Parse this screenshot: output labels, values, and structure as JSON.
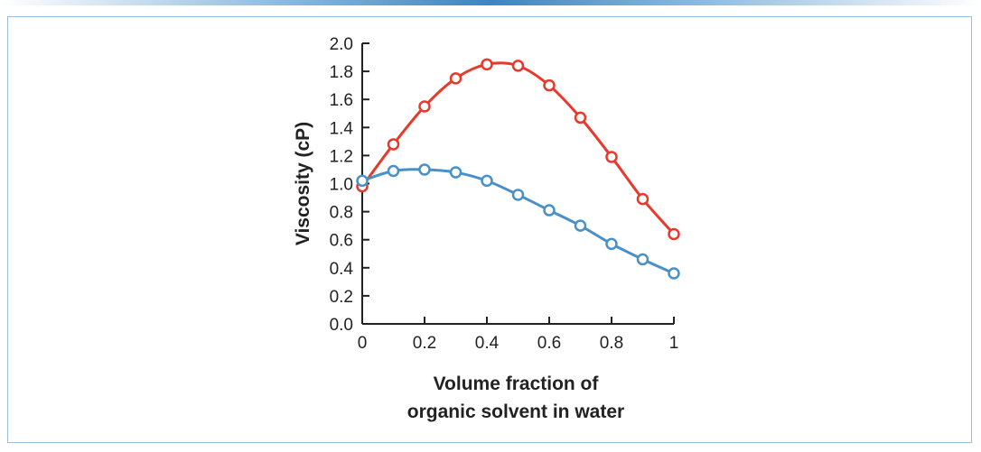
{
  "chart_data": {
    "type": "line",
    "xlabel_lines": [
      "Volume fraction of",
      "organic solvent in water"
    ],
    "ylabel": "Viscosity (cP)",
    "xlim": [
      0,
      1
    ],
    "ylim": [
      0,
      2
    ],
    "xticks": [
      0,
      0.2,
      0.4,
      0.6,
      0.8,
      1
    ],
    "xtick_labels": [
      "0",
      "0.2",
      "0.4",
      "0.6",
      "0.8",
      "1"
    ],
    "yticks": [
      0,
      0.2,
      0.4,
      0.6,
      0.8,
      1.0,
      1.2,
      1.4,
      1.6,
      1.8,
      2.0
    ],
    "ytick_labels": [
      "0.0",
      "0.2",
      "0.4",
      "0.6",
      "0.8",
      "1.0",
      "1.2",
      "1.4",
      "1.6",
      "1.8",
      "2.0"
    ],
    "grid": false,
    "legend": "none",
    "series": [
      {
        "color": "#e8392b",
        "x": [
          0,
          0.1,
          0.2,
          0.3,
          0.4,
          0.5,
          0.6,
          0.7,
          0.8,
          0.9,
          1.0
        ],
        "y": [
          0.98,
          1.28,
          1.55,
          1.75,
          1.85,
          1.84,
          1.7,
          1.47,
          1.19,
          0.89,
          0.64
        ]
      },
      {
        "color": "#4a90c8",
        "x": [
          0,
          0.1,
          0.2,
          0.3,
          0.4,
          0.5,
          0.6,
          0.7,
          0.8,
          0.9,
          1.0
        ],
        "y": [
          1.02,
          1.09,
          1.1,
          1.08,
          1.02,
          0.92,
          0.81,
          0.7,
          0.57,
          0.46,
          0.36
        ]
      }
    ]
  }
}
